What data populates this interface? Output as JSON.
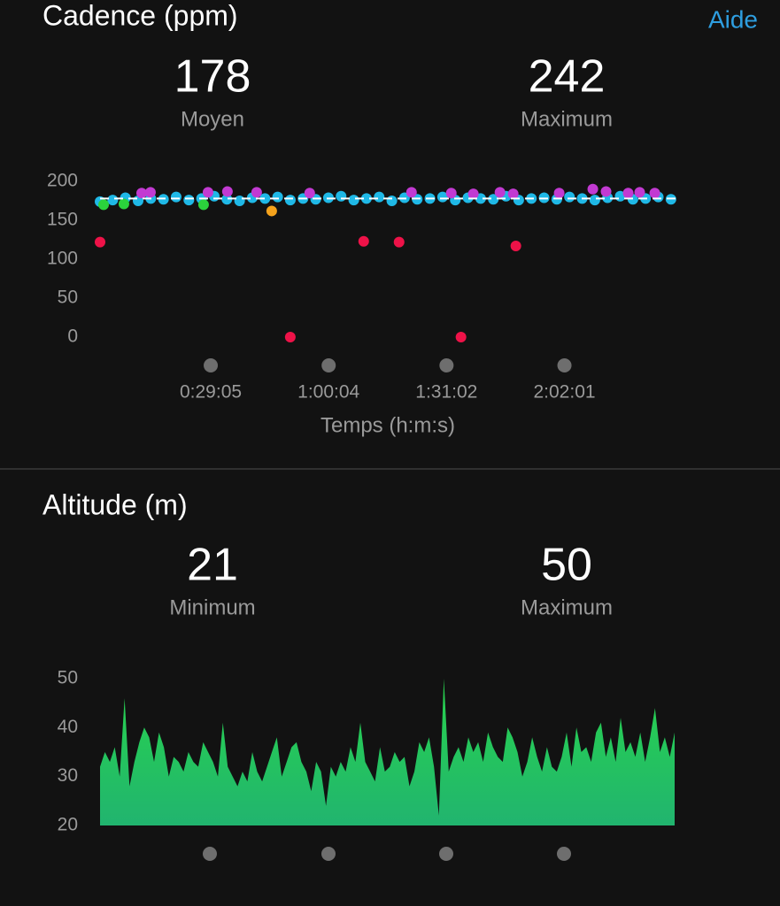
{
  "help_link": "Aide",
  "chart_data": [
    {
      "type": "scatter",
      "title": "Cadence (ppm)",
      "stats": [
        {
          "value": 178,
          "label": "Moyen"
        },
        {
          "value": 242,
          "label": "Maximum"
        }
      ],
      "average_line_color": "#ffffff",
      "xlabel": "Temps (h:m:s)",
      "xlim": [
        0,
        9100
      ],
      "xticks": [
        {
          "value": 1745,
          "label": "0:29:05"
        },
        {
          "value": 3604,
          "label": "1:00:04"
        },
        {
          "value": 5462,
          "label": "1:31:02"
        },
        {
          "value": 7321,
          "label": "2:02:01"
        }
      ],
      "ylim": [
        0,
        200
      ],
      "yticks": [
        0,
        50,
        100,
        150,
        200
      ],
      "series": [
        {
          "color": "#1fb8e6",
          "x": [
            0,
            200,
            400,
            600,
            800,
            1000,
            1200,
            1400,
            1600,
            1800,
            2000,
            2200,
            2400,
            2600,
            2800,
            3000,
            3200,
            3400,
            3600,
            3800,
            4000,
            4200,
            4400,
            4600,
            4800,
            5000,
            5200,
            5400,
            5600,
            5800,
            6000,
            6200,
            6400,
            6600,
            6800,
            7000,
            7200,
            7400,
            7600,
            7800,
            8000,
            8200,
            8400,
            8600,
            8800,
            9000
          ],
          "values": [
            174,
            176,
            179,
            175,
            178,
            177,
            180,
            176,
            178,
            181,
            177,
            175,
            179,
            178,
            180,
            176,
            178,
            177,
            179,
            181,
            176,
            178,
            180,
            175,
            179,
            177,
            178,
            180,
            176,
            179,
            178,
            177,
            181,
            176,
            178,
            179,
            177,
            180,
            178,
            176,
            179,
            181,
            177,
            178,
            180,
            177
          ]
        },
        {
          "color": "#c23ad2",
          "x": [
            656,
            795,
            1702,
            2008,
            2469,
            3305,
            4910,
            5537,
            5885,
            6304,
            6513,
            7238,
            7768,
            7977,
            8326,
            8507,
            8745
          ],
          "values": [
            185,
            186,
            186,
            187,
            186,
            185,
            186,
            185,
            184,
            186,
            184,
            185,
            190,
            187,
            185,
            186,
            185
          ]
        },
        {
          "color": "#2bd23c",
          "x": [
            56,
            376,
            1632
          ],
          "values": [
            170,
            171,
            170
          ]
        },
        {
          "color": "#f4a21c",
          "x": [
            2706
          ],
          "values": [
            162
          ]
        },
        {
          "color": "#ee1248",
          "x": [
            0,
            4156,
            4714,
            6555,
            2999,
            5690
          ],
          "values": [
            122,
            123,
            122,
            117,
            0,
            0
          ]
        }
      ]
    },
    {
      "type": "area",
      "title": "Altitude (m)",
      "stats": [
        {
          "value": 21,
          "label": "Minimum"
        },
        {
          "value": 50,
          "label": "Maximum"
        }
      ],
      "color": "#28d44c",
      "color_bottom": "#21b46f",
      "ylim": [
        20,
        50
      ],
      "yticks": [
        20,
        30,
        40,
        50
      ],
      "values": [
        32,
        35,
        33,
        36,
        30,
        46,
        28,
        33,
        37,
        40,
        38,
        33,
        39,
        36,
        30,
        34,
        33,
        31,
        35,
        33,
        32,
        37,
        35,
        33,
        30,
        41,
        32,
        30,
        28,
        31,
        29,
        35,
        31,
        29,
        32,
        35,
        38,
        30,
        33,
        36,
        37,
        33,
        31,
        27,
        33,
        31,
        24,
        32,
        30,
        33,
        31,
        36,
        33,
        41,
        33,
        31,
        29,
        36,
        31,
        32,
        35,
        33,
        34,
        28,
        31,
        37,
        35,
        38,
        32,
        22,
        50,
        31,
        34,
        36,
        33,
        38,
        35,
        37,
        33,
        39,
        36,
        34,
        33,
        40,
        38,
        35,
        30,
        33,
        38,
        34,
        31,
        36,
        32,
        31,
        34,
        39,
        32,
        40,
        35,
        36,
        33,
        39,
        41,
        34,
        38,
        33,
        42,
        35,
        37,
        34,
        39,
        33,
        38,
        44,
        35,
        38,
        34,
        39
      ]
    }
  ]
}
